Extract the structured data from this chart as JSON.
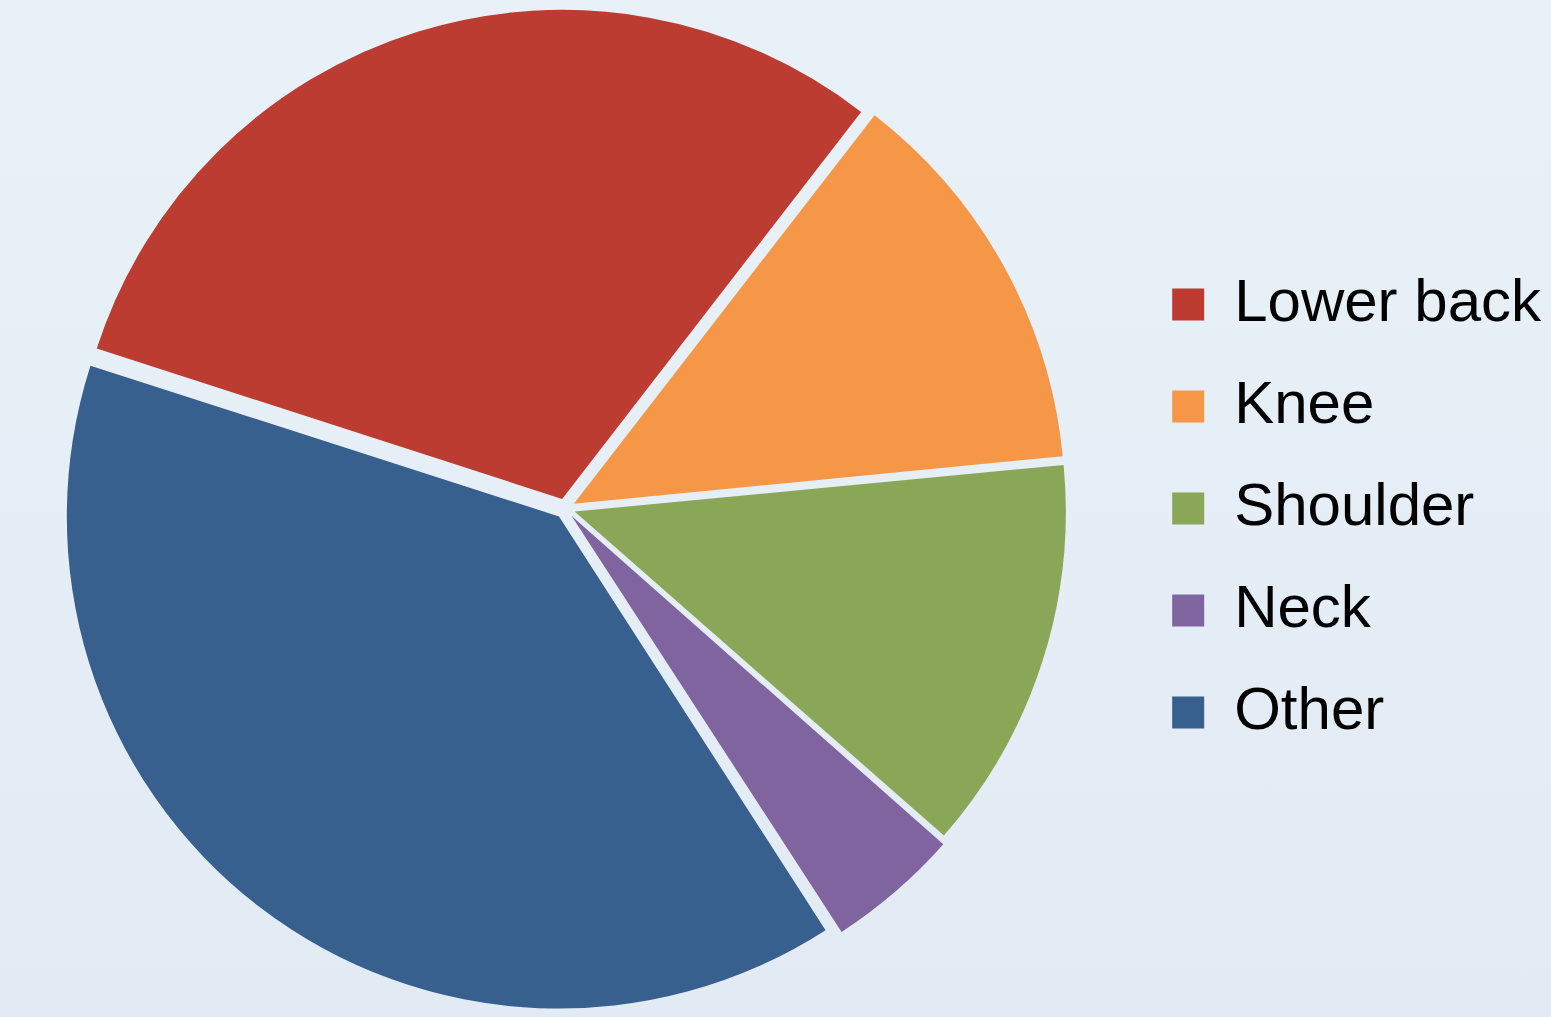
{
  "chart_data": {
    "type": "pie",
    "categories": [
      "Lower back",
      "Knee",
      "Shoulder",
      "Neck",
      "Other"
    ],
    "values": [
      30.5,
      13,
      13,
      4.4,
      39.1
    ],
    "colors": [
      "#bc3c32",
      "#f69748",
      "#8aa758",
      "#8064a0",
      "#37608f"
    ],
    "legend": "right"
  }
}
